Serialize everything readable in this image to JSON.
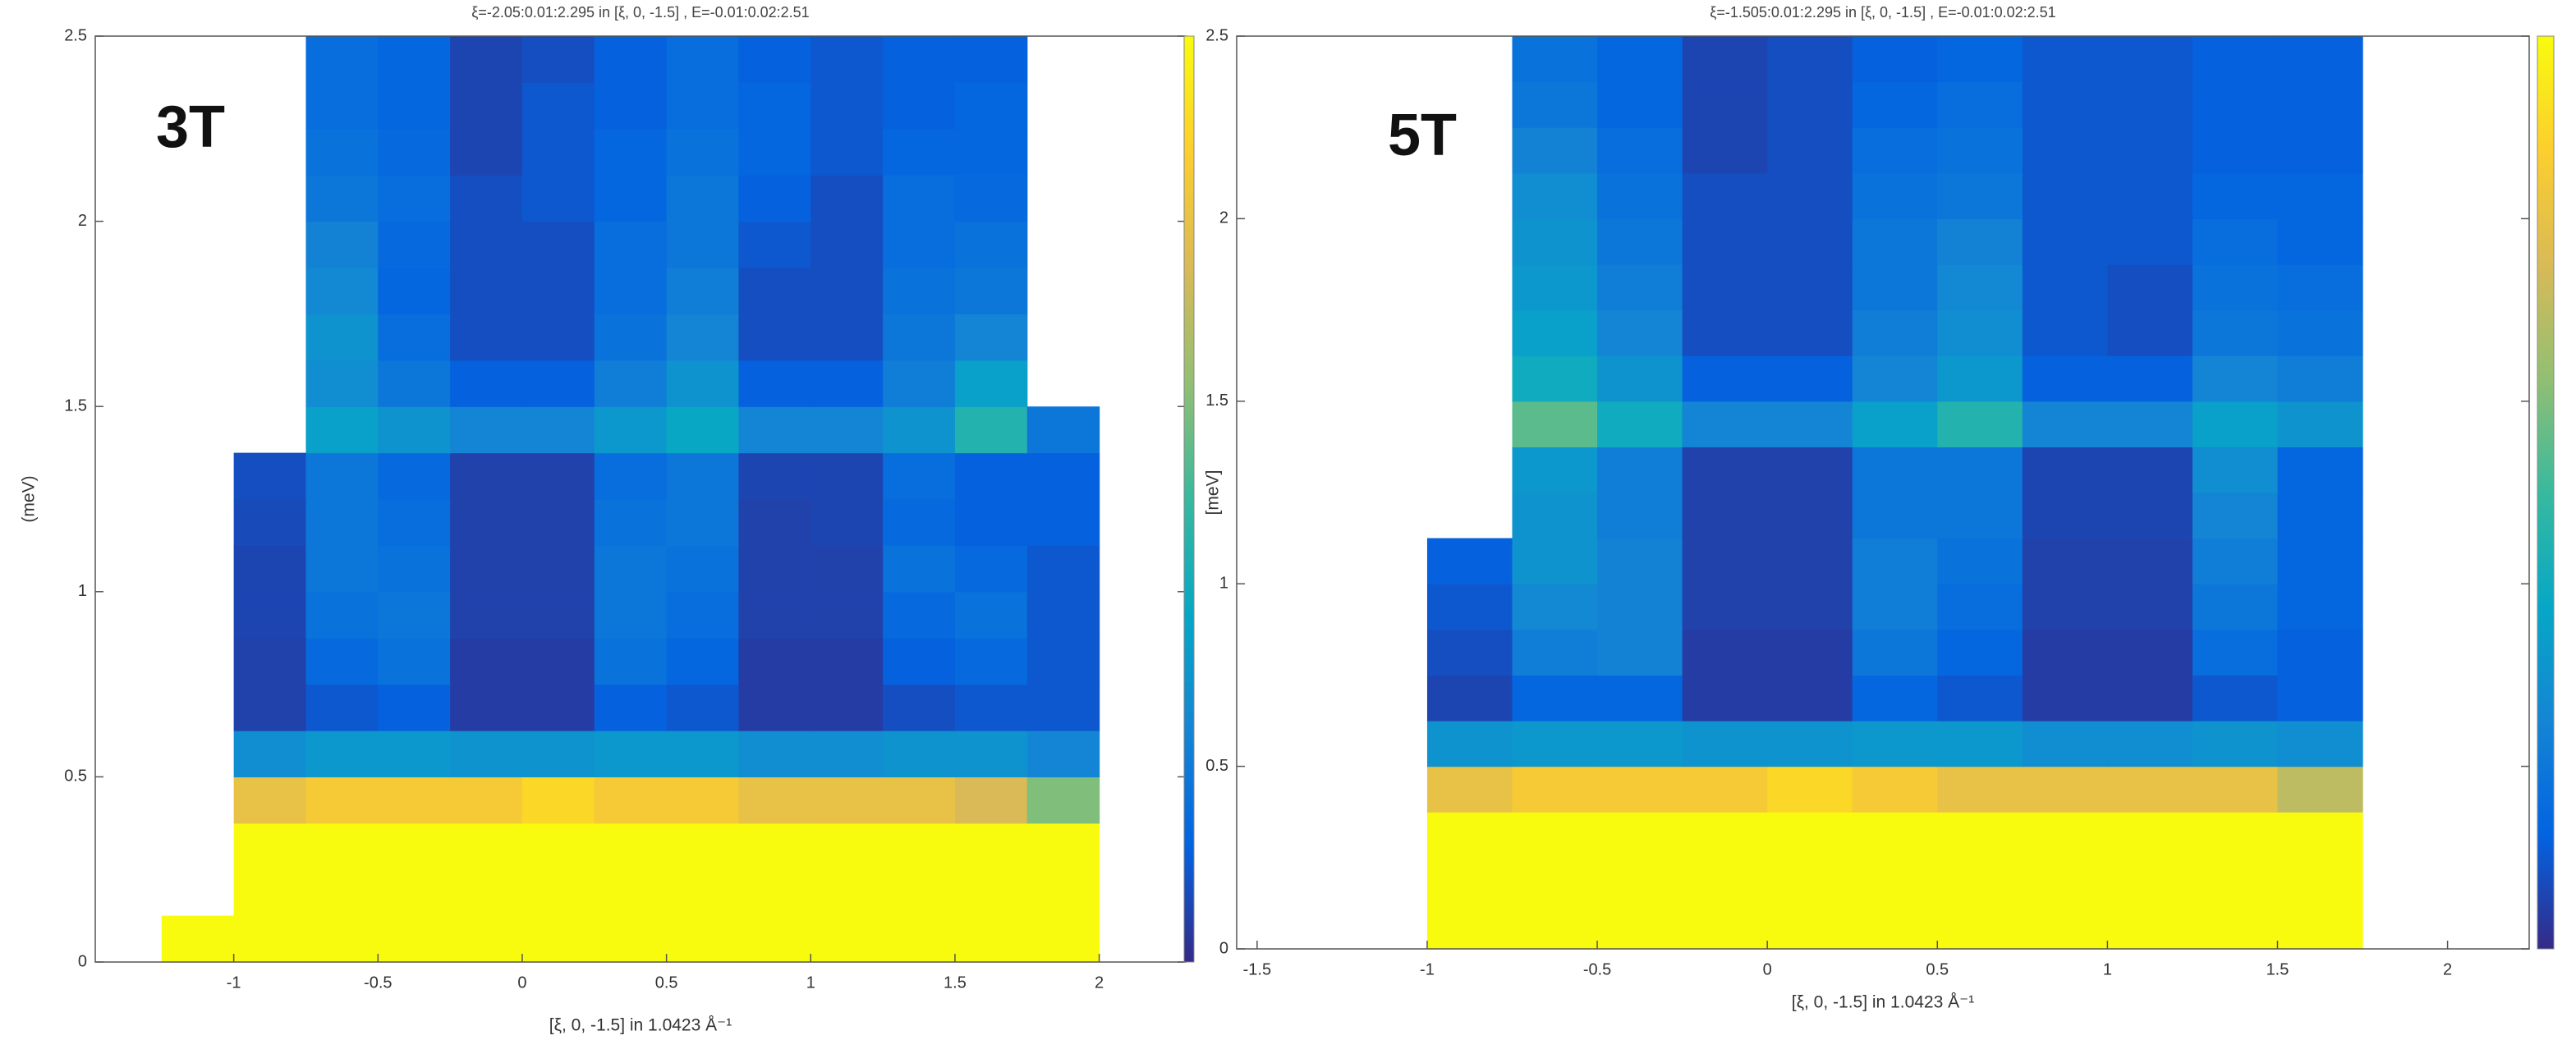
{
  "chart_data": [
    {
      "type": "heatmap",
      "title": "ξ=-2.05:0.01:2.295 in [ξ, 0, -1.5] , E=-0.01:0.02:2.51",
      "annotation": "3T",
      "x_label": "[ξ, 0, -1.5] in 1.0423 Å⁻¹",
      "y_label": "(meV)",
      "xlim": [
        -1.48,
        2.3
      ],
      "ylim": [
        0,
        2.5
      ],
      "xticks": [
        -1,
        -0.5,
        0,
        0.5,
        1,
        1.5,
        2
      ],
      "yticks": [
        0,
        0.5,
        1,
        1.5,
        2,
        2.5
      ],
      "clim": [
        0,
        1
      ],
      "colormap": [
        "#352a87",
        "#0363e1",
        "#1485d4",
        "#06a7c6",
        "#38b99e",
        "#92bf73",
        "#d9ba56",
        "#fcce2e",
        "#f9fb0e"
      ],
      "x_edges": [
        -1.25,
        -1,
        -0.75,
        -0.5,
        -0.25,
        0,
        0.25,
        0.5,
        0.75,
        1,
        1.25,
        1.5,
        1.75,
        2
      ],
      "y_edges": [
        0,
        0.125,
        0.25,
        0.375,
        0.5,
        0.625,
        0.75,
        0.875,
        1,
        1.125,
        1.25,
        1.375,
        1.5,
        1.625,
        1.75,
        1.875,
        2,
        2.125,
        2.25,
        2.375,
        2.5
      ],
      "values": [
        [
          1,
          1,
          1,
          1,
          1,
          1,
          1,
          1,
          1,
          1,
          1,
          1,
          1
        ],
        [
          null,
          1,
          1,
          1,
          1,
          1,
          1,
          1,
          1,
          1,
          1,
          1,
          1
        ],
        [
          null,
          1,
          1,
          1,
          1,
          1,
          1,
          1,
          1,
          1,
          1,
          1,
          1
        ],
        [
          null,
          0.8,
          0.85,
          0.85,
          0.85,
          0.9,
          0.85,
          0.85,
          0.8,
          0.8,
          0.8,
          0.75,
          0.6
        ],
        [
          null,
          0.28,
          0.32,
          0.32,
          0.3,
          0.3,
          0.32,
          0.32,
          0.28,
          0.28,
          0.3,
          0.3,
          0.25
        ],
        [
          null,
          0.05,
          0.1,
          0.12,
          0.04,
          0.04,
          0.12,
          0.1,
          0.04,
          0.04,
          0.08,
          0.1,
          0.1
        ],
        [
          null,
          0.05,
          0.15,
          0.18,
          0.04,
          0.04,
          0.18,
          0.14,
          0.04,
          0.04,
          0.12,
          0.15,
          0.1
        ],
        [
          null,
          0.06,
          0.18,
          0.2,
          0.05,
          0.05,
          0.2,
          0.16,
          0.05,
          0.05,
          0.15,
          0.18,
          0.1
        ],
        [
          null,
          0.06,
          0.2,
          0.18,
          0.05,
          0.05,
          0.2,
          0.18,
          0.05,
          0.05,
          0.18,
          0.15,
          0.1
        ],
        [
          null,
          0.07,
          0.2,
          0.16,
          0.05,
          0.05,
          0.18,
          0.2,
          0.05,
          0.06,
          0.15,
          0.12,
          0.12
        ],
        [
          null,
          0.08,
          0.2,
          0.15,
          0.05,
          0.05,
          0.16,
          0.2,
          0.06,
          0.06,
          0.16,
          0.12,
          0.12
        ],
        [
          null,
          null,
          0.35,
          0.3,
          0.25,
          0.25,
          0.32,
          0.38,
          0.25,
          0.25,
          0.3,
          0.45,
          0.2
        ],
        [
          null,
          null,
          0.28,
          0.2,
          0.12,
          0.12,
          0.22,
          0.3,
          0.12,
          0.12,
          0.22,
          0.35,
          null
        ],
        [
          null,
          null,
          0.3,
          0.16,
          0.08,
          0.08,
          0.18,
          0.25,
          0.08,
          0.08,
          0.2,
          0.25,
          null
        ],
        [
          null,
          null,
          0.26,
          0.14,
          0.08,
          0.08,
          0.16,
          0.22,
          0.08,
          0.08,
          0.18,
          0.2,
          null
        ],
        [
          null,
          null,
          0.24,
          0.15,
          0.08,
          0.08,
          0.16,
          0.2,
          0.1,
          0.08,
          0.16,
          0.18,
          null
        ],
        [
          null,
          null,
          0.2,
          0.16,
          0.08,
          0.1,
          0.14,
          0.2,
          0.12,
          0.08,
          0.16,
          0.15,
          null
        ],
        [
          null,
          null,
          0.18,
          0.15,
          0.06,
          0.1,
          0.14,
          0.18,
          0.14,
          0.1,
          0.14,
          0.14,
          null
        ],
        [
          null,
          null,
          0.16,
          0.14,
          0.06,
          0.1,
          0.12,
          0.16,
          0.14,
          0.1,
          0.12,
          0.14,
          null
        ],
        [
          null,
          null,
          0.16,
          0.14,
          0.06,
          0.08,
          0.12,
          0.16,
          0.12,
          0.1,
          0.12,
          0.12,
          null
        ]
      ]
    },
    {
      "type": "heatmap",
      "title": "ξ=-1.505:0.01:2.295 in [ξ, 0, -1.5] , E=-0.01:0.02:2.51",
      "annotation": "5T",
      "x_label": "[ξ, 0, -1.5] in 1.0423 Å⁻¹",
      "y_label": "[meV]",
      "xlim": [
        -1.56,
        2.24
      ],
      "ylim": [
        0,
        2.5
      ],
      "xticks": [
        -1.5,
        -1,
        -0.5,
        0,
        0.5,
        1,
        1.5,
        2
      ],
      "yticks": [
        0,
        0.5,
        1,
        1.5,
        2,
        2.5
      ],
      "clim": [
        0,
        1
      ],
      "colormap": [
        "#352a87",
        "#0363e1",
        "#1485d4",
        "#06a7c6",
        "#38b99e",
        "#92bf73",
        "#d9ba56",
        "#fcce2e",
        "#f9fb0e"
      ],
      "x_edges": [
        -1.25,
        -1,
        -0.75,
        -0.5,
        -0.25,
        0,
        0.25,
        0.5,
        0.75,
        1,
        1.25,
        1.5,
        1.75,
        2
      ],
      "y_edges": [
        0,
        0.125,
        0.25,
        0.375,
        0.5,
        0.625,
        0.75,
        0.875,
        1,
        1.125,
        1.25,
        1.375,
        1.5,
        1.625,
        1.75,
        1.875,
        2,
        2.125,
        2.25,
        2.375,
        2.5
      ],
      "values": [
        [
          null,
          1,
          1,
          1,
          1,
          1,
          1,
          1,
          1,
          1,
          1,
          1,
          null
        ],
        [
          null,
          1,
          1,
          1,
          1,
          1,
          1,
          1,
          1,
          1,
          1,
          1,
          null
        ],
        [
          null,
          1,
          1,
          1,
          1,
          1,
          1,
          1,
          1,
          1,
          1,
          1,
          null
        ],
        [
          null,
          0.8,
          0.85,
          0.85,
          0.85,
          0.9,
          0.85,
          0.8,
          0.8,
          0.8,
          0.8,
          0.7,
          null
        ],
        [
          null,
          0.3,
          0.32,
          0.32,
          0.3,
          0.3,
          0.32,
          0.32,
          0.28,
          0.28,
          0.3,
          0.28,
          null
        ],
        [
          null,
          0.06,
          0.14,
          0.14,
          0.04,
          0.04,
          0.14,
          0.1,
          0.04,
          0.04,
          0.1,
          0.12,
          null
        ],
        [
          null,
          0.08,
          0.22,
          0.24,
          0.04,
          0.04,
          0.2,
          0.14,
          0.04,
          0.04,
          0.16,
          0.12,
          null
        ],
        [
          null,
          0.1,
          0.26,
          0.24,
          0.05,
          0.05,
          0.22,
          0.16,
          0.05,
          0.05,
          0.2,
          0.14,
          null
        ],
        [
          null,
          0.12,
          0.3,
          0.24,
          0.05,
          0.05,
          0.22,
          0.18,
          0.05,
          0.05,
          0.22,
          0.14,
          null
        ],
        [
          null,
          null,
          0.3,
          0.22,
          0.05,
          0.05,
          0.2,
          0.2,
          0.06,
          0.06,
          0.25,
          0.14,
          null
        ],
        [
          null,
          null,
          0.32,
          0.22,
          0.05,
          0.05,
          0.2,
          0.2,
          0.06,
          0.06,
          0.28,
          0.14,
          null
        ],
        [
          null,
          null,
          0.55,
          0.4,
          0.25,
          0.25,
          0.35,
          0.45,
          0.25,
          0.25,
          0.35,
          0.3,
          null
        ],
        [
          null,
          null,
          0.4,
          0.3,
          0.12,
          0.12,
          0.25,
          0.32,
          0.12,
          0.12,
          0.25,
          0.22,
          null
        ],
        [
          null,
          null,
          0.35,
          0.25,
          0.08,
          0.08,
          0.22,
          0.28,
          0.1,
          0.08,
          0.2,
          0.18,
          null
        ],
        [
          null,
          null,
          0.32,
          0.22,
          0.08,
          0.08,
          0.2,
          0.26,
          0.1,
          0.08,
          0.18,
          0.16,
          null
        ],
        [
          null,
          null,
          0.3,
          0.2,
          0.08,
          0.08,
          0.2,
          0.24,
          0.1,
          0.1,
          0.16,
          0.14,
          null
        ],
        [
          null,
          null,
          0.28,
          0.18,
          0.08,
          0.08,
          0.18,
          0.2,
          0.1,
          0.1,
          0.14,
          0.14,
          null
        ],
        [
          null,
          null,
          0.24,
          0.16,
          0.06,
          0.08,
          0.16,
          0.18,
          0.1,
          0.1,
          0.12,
          0.12,
          null
        ],
        [
          null,
          null,
          0.2,
          0.14,
          0.06,
          0.08,
          0.14,
          0.16,
          0.1,
          0.1,
          0.12,
          0.12,
          null
        ],
        [
          null,
          null,
          0.18,
          0.14,
          0.06,
          0.08,
          0.12,
          0.14,
          0.1,
          0.1,
          0.12,
          0.12,
          null
        ]
      ]
    }
  ]
}
